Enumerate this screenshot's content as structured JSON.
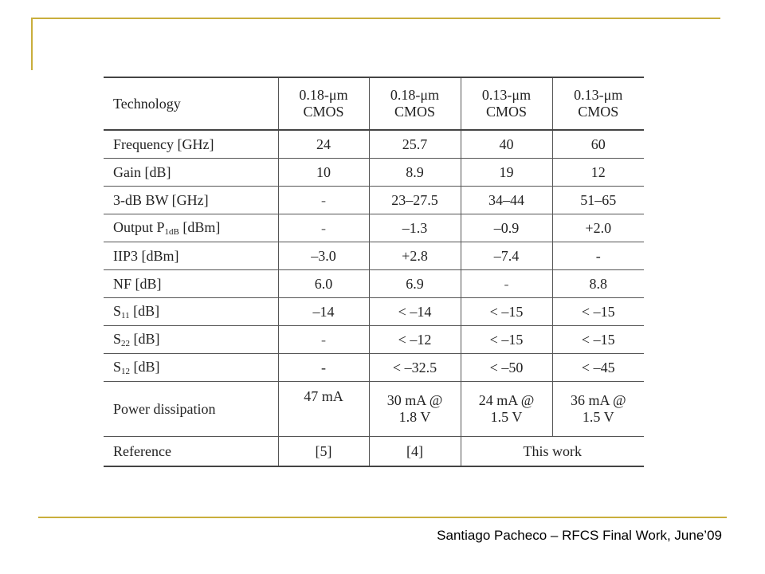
{
  "footer": "Santiago Pacheco – RFCS Final Work, June’09",
  "table": {
    "header": {
      "label": "Technology",
      "columns": [
        {
          "line1": "0.18-μm",
          "line2": "CMOS"
        },
        {
          "line1": "0.18-μm",
          "line2": "CMOS"
        },
        {
          "line1": "0.13-μm",
          "line2": "CMOS"
        },
        {
          "line1": "0.13-μm",
          "line2": "CMOS"
        }
      ]
    },
    "rows": [
      {
        "label": "Frequency [GHz]",
        "values": [
          "24",
          "25.7",
          "40",
          "60"
        ]
      },
      {
        "label": "Gain [dB]",
        "values": [
          "10",
          "8.9",
          "19",
          "12"
        ]
      },
      {
        "label": "3-dB BW [GHz]",
        "values": [
          "-",
          "23–27.5",
          "34–44",
          "51–65"
        ]
      },
      {
        "label_pre": "Output P",
        "label_sub": "1dB",
        "label_post": " [dBm]",
        "values": [
          "-",
          "–1.3",
          "–0.9",
          "+2.0"
        ]
      },
      {
        "label": "IIP3 [dBm]",
        "values": [
          "–3.0",
          "+2.8",
          "–7.4",
          "-"
        ]
      },
      {
        "label": "NF [dB]",
        "values": [
          "6.0",
          "6.9",
          "-",
          "8.8"
        ]
      },
      {
        "label_pre": "S",
        "label_sub": "11",
        "label_post": " [dB]",
        "values": [
          "–14",
          "< –14",
          "< –15",
          "< –15"
        ]
      },
      {
        "label_pre": "S",
        "label_sub": "22",
        "label_post": " [dB]",
        "values": [
          "-",
          "< –12",
          "< –15",
          "< –15"
        ]
      },
      {
        "label_pre": "S",
        "label_sub": "12",
        "label_post": " [dB]",
        "values": [
          "-",
          "< –32.5",
          "< –50",
          "< –45"
        ]
      }
    ],
    "power": {
      "label": "Power dissipation",
      "values": [
        {
          "line1": "47 mA",
          "line2": ""
        },
        {
          "line1": "30 mA @",
          "line2": "1.8 V"
        },
        {
          "line1": "24 mA @",
          "line2": "1.5 V"
        },
        {
          "line1": "36 mA @",
          "line2": "1.5 V"
        }
      ]
    },
    "reference": {
      "label": "Reference",
      "values": [
        "[5]",
        "[4]",
        "This work"
      ]
    }
  }
}
